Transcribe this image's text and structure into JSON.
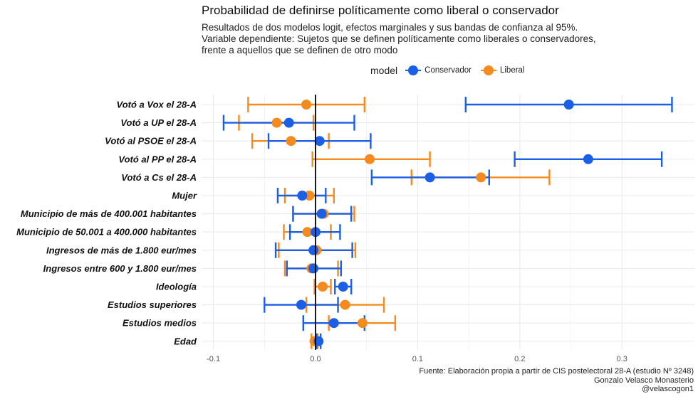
{
  "colors": {
    "conservador": "#1b5fe6",
    "liberal": "#f58a1f",
    "grid": "#ebebeb",
    "zero": "#000000"
  },
  "chart_data": {
    "type": "scatter",
    "subtype": "coefficient-plot",
    "title": "Probabilidad de definirse políticamente como liberal o conservador",
    "subtitle": [
      "Resultados de dos modelos logit, efectos marginales y sus bandas de confianza al 95%.",
      "Variable dependiente: Sujetos que se definen políticamente como liberales o conservadores,",
      "frente a aquellos que se definen de otro modo"
    ],
    "caption": [
      "Fuente: Elaboración propia a partir de CIS postelectoral 28-A (estudio Nº 3248)",
      "Gonzalo Velasco Monasterio",
      "@velascogon1"
    ],
    "legend_title": "model",
    "legend_position": "top",
    "xlim": [
      -0.105,
      0.36
    ],
    "xticks": [
      -0.1,
      0.0,
      0.1,
      0.2,
      0.3
    ],
    "xtick_labels": [
      "-0.1",
      "0.0",
      "0.1",
      "0.2",
      "0.3"
    ],
    "xlabel": "",
    "ylabel": "",
    "categories": [
      "Votó a Vox el 28-A",
      "Votó a UP el 28-A",
      "Votó al PSOE el 28-A",
      "Votó al PP el 28-A",
      "Votó a Cs el 28-A",
      "Mujer",
      "Municipio de más de 400.001 habitantes",
      "Municipio de 50.001 a 400.000 habitantes",
      "Ingresos de más de 1.800 eur/mes",
      "Ingresos entre 600 y 1.800 eur/mes",
      "Ideología",
      "Estudios superiores",
      "Estudios medios",
      "Edad"
    ],
    "series": [
      {
        "name": "Liberal",
        "color_key": "liberal",
        "estimate": [
          -0.009,
          -0.038,
          -0.024,
          0.053,
          0.162,
          -0.006,
          0.008,
          -0.008,
          0.001,
          -0.004,
          0.007,
          0.029,
          0.046,
          -0.001
        ],
        "lower": [
          -0.066,
          -0.075,
          -0.062,
          -0.003,
          0.094,
          -0.03,
          -0.022,
          -0.031,
          -0.036,
          -0.03,
          -0.001,
          -0.009,
          0.013,
          -0.004
        ],
        "upper": [
          0.048,
          -0.002,
          0.013,
          0.112,
          0.229,
          0.018,
          0.038,
          0.015,
          0.039,
          0.022,
          0.015,
          0.067,
          0.078,
          0.002
        ]
      },
      {
        "name": "Conservador",
        "color_key": "conservador",
        "estimate": [
          0.248,
          -0.026,
          0.004,
          0.267,
          0.112,
          -0.013,
          0.006,
          0.0,
          -0.002,
          -0.002,
          0.027,
          -0.014,
          0.018,
          0.003
        ],
        "lower": [
          0.147,
          -0.09,
          -0.046,
          0.195,
          0.055,
          -0.037,
          -0.022,
          -0.025,
          -0.039,
          -0.028,
          0.019,
          -0.05,
          -0.012,
          0.001
        ],
        "upper": [
          0.349,
          0.038,
          0.054,
          0.339,
          0.17,
          0.01,
          0.035,
          0.024,
          0.036,
          0.025,
          0.035,
          0.022,
          0.048,
          0.005
        ]
      }
    ]
  }
}
